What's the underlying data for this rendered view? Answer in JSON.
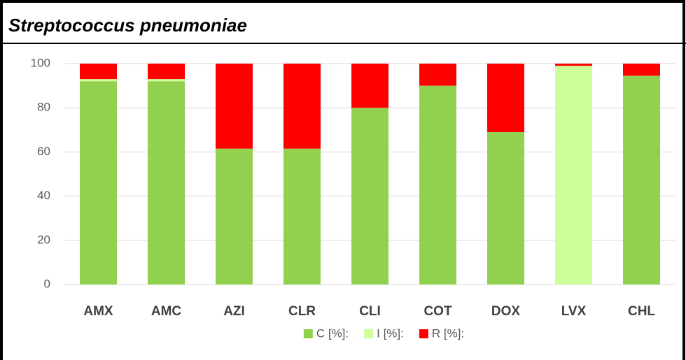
{
  "chart_data": {
    "type": "stacked_bar",
    "title": "Streptococcus pneumoniae",
    "categories": [
      "AMX",
      "AMC",
      "AZI",
      "CLR",
      "CLI",
      "COT",
      "DOX",
      "LVX",
      "CHL"
    ],
    "series": [
      {
        "name": "C [%]:",
        "color": "#92d050",
        "values": [
          92,
          92,
          61.5,
          61.5,
          80,
          90,
          69,
          0,
          94.5
        ]
      },
      {
        "name": "I [%]:",
        "color": "#ccff99",
        "values": [
          1,
          1,
          0,
          0,
          0,
          0,
          0,
          99,
          0
        ]
      },
      {
        "name": "R [%]:",
        "color": "#ff0000",
        "values": [
          7,
          7,
          38.5,
          38.5,
          20,
          10,
          31,
          1,
          5.5
        ]
      }
    ],
    "ylim": [
      0,
      100
    ],
    "yticks": [
      0,
      20,
      40,
      60,
      80,
      100
    ],
    "grid": true,
    "legend": "bottom"
  }
}
